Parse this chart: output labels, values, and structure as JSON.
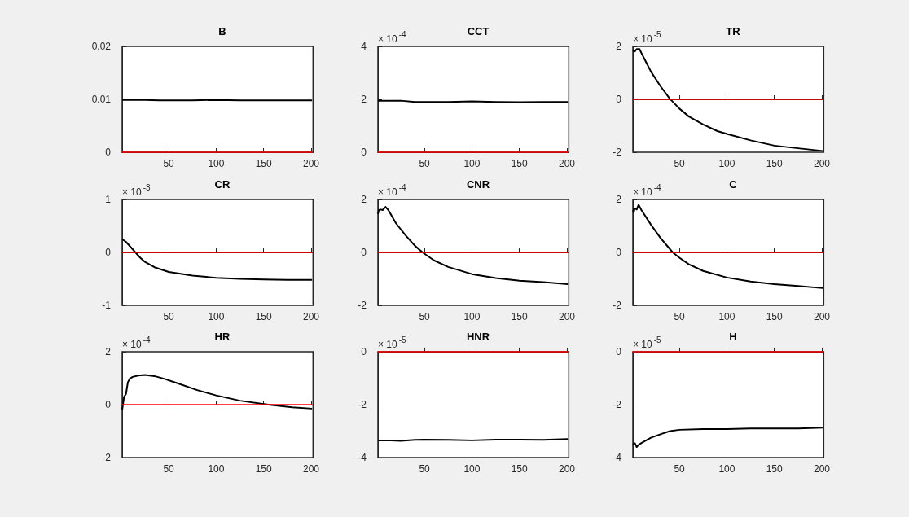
{
  "chart_data": [
    {
      "type": "line",
      "title": "B",
      "x": [
        1,
        10,
        25,
        40,
        50,
        75,
        100,
        125,
        150,
        175,
        201
      ],
      "series": [
        {
          "color": "#000000",
          "values": [
            0.0099,
            0.0099,
            0.0099,
            0.0098,
            0.0098,
            0.0098,
            0.0099,
            0.0098,
            0.0098,
            0.0098,
            0.0098
          ]
        }
      ],
      "xlim": [
        1,
        202
      ],
      "xticks": [
        50,
        100,
        150,
        200
      ],
      "ylim": [
        0,
        0.02
      ],
      "yticks": [
        0,
        0.01,
        0.02
      ],
      "ref_lines": [
        {
          "axis": "y",
          "value": 0,
          "color": "#ff0000"
        }
      ],
      "grid": false
    },
    {
      "type": "line",
      "title": "CCT",
      "annotations": [
        "× 10$^{-4}$"
      ],
      "x": [
        1,
        10,
        25,
        40,
        50,
        75,
        100,
        125,
        150,
        175,
        201
      ],
      "series": [
        {
          "color": "#000000",
          "values": [
            1.95,
            1.95,
            1.95,
            1.9,
            1.9,
            1.9,
            1.92,
            1.9,
            1.89,
            1.9,
            1.9
          ]
        }
      ],
      "xlim": [
        1,
        202
      ],
      "xticks": [
        50,
        100,
        150,
        200
      ],
      "ylim": [
        0,
        4
      ],
      "yticks": [
        0,
        2,
        4
      ],
      "ref_lines": [
        {
          "axis": "y",
          "value": 0,
          "color": "#ff0000"
        }
      ],
      "grid": false
    },
    {
      "type": "line",
      "title": "TR",
      "annotations": [
        "× 10$^{-5}$"
      ],
      "x": [
        1,
        3,
        5,
        8,
        10,
        15,
        20,
        30,
        40,
        50,
        60,
        75,
        90,
        100,
        125,
        150,
        175,
        201
      ],
      "series": [
        {
          "color": "#000000",
          "values": [
            1.85,
            1.8,
            1.9,
            1.9,
            1.75,
            1.4,
            1.05,
            0.5,
            0.02,
            -0.35,
            -0.65,
            -0.95,
            -1.2,
            -1.31,
            -1.55,
            -1.75,
            -1.85,
            -1.95
          ]
        }
      ],
      "xlim": [
        1,
        202
      ],
      "xticks": [
        50,
        100,
        150,
        200
      ],
      "ylim": [
        -2,
        2
      ],
      "yticks": [
        -2,
        0,
        2
      ],
      "ref_lines": [
        {
          "axis": "y",
          "value": 0,
          "color": "#ff0000"
        }
      ],
      "grid": false
    },
    {
      "type": "line",
      "title": "CR",
      "annotations": [
        "× 10$^{-3}$"
      ],
      "x": [
        1,
        5,
        10,
        15,
        20,
        25,
        35,
        50,
        75,
        100,
        125,
        150,
        175,
        201
      ],
      "series": [
        {
          "color": "#000000",
          "values": [
            0.25,
            0.2,
            0.1,
            0,
            -0.1,
            -0.18,
            -0.28,
            -0.37,
            -0.44,
            -0.48,
            -0.5,
            -0.51,
            -0.52,
            -0.52
          ]
        }
      ],
      "xlim": [
        1,
        202
      ],
      "xticks": [
        50,
        100,
        150,
        200
      ],
      "ylim": [
        -1,
        1
      ],
      "yticks": [
        -1,
        0,
        1
      ],
      "ref_lines": [
        {
          "axis": "y",
          "value": 0,
          "color": "#ff0000"
        }
      ],
      "grid": false
    },
    {
      "type": "line",
      "title": "CNR",
      "annotations": [
        "× 10$^{-4}$"
      ],
      "x": [
        1,
        2,
        4,
        6,
        9,
        12,
        20,
        30,
        40,
        48,
        60,
        75,
        100,
        125,
        150,
        175,
        201
      ],
      "series": [
        {
          "color": "#000000",
          "values": [
            1.45,
            1.6,
            1.62,
            1.6,
            1.72,
            1.6,
            1.1,
            0.65,
            0.25,
            0,
            -0.3,
            -0.55,
            -0.82,
            -0.97,
            -1.07,
            -1.12,
            -1.2
          ]
        }
      ],
      "xlim": [
        1,
        202
      ],
      "xticks": [
        50,
        100,
        150,
        200
      ],
      "ylim": [
        -2,
        2
      ],
      "yticks": [
        -2,
        0,
        2
      ],
      "ref_lines": [
        {
          "axis": "y",
          "value": 0,
          "color": "#ff0000"
        }
      ],
      "grid": false
    },
    {
      "type": "line",
      "title": "C",
      "annotations": [
        "× 10$^{-4}$"
      ],
      "x": [
        1,
        2,
        4,
        5,
        7,
        10,
        20,
        30,
        43,
        50,
        60,
        75,
        100,
        125,
        150,
        175,
        201
      ],
      "series": [
        {
          "color": "#000000",
          "values": [
            1.5,
            1.65,
            1.65,
            1.62,
            1.8,
            1.6,
            1.05,
            0.55,
            0,
            -0.2,
            -0.45,
            -0.7,
            -0.95,
            -1.1,
            -1.2,
            -1.27,
            -1.35
          ]
        }
      ],
      "xlim": [
        1,
        202
      ],
      "xticks": [
        50,
        100,
        150,
        200
      ],
      "ylim": [
        -2,
        2
      ],
      "yticks": [
        -2,
        0,
        2
      ],
      "ref_lines": [
        {
          "axis": "y",
          "value": 0,
          "color": "#ff0000"
        }
      ],
      "grid": false
    },
    {
      "type": "line",
      "title": "HR",
      "annotations": [
        "× 10$^{-4}$"
      ],
      "x": [
        1,
        3,
        5,
        7,
        9,
        12,
        18,
        25,
        35,
        45,
        60,
        80,
        100,
        125,
        155,
        180,
        201
      ],
      "series": [
        {
          "color": "#000000",
          "values": [
            -0.2,
            0.3,
            0.4,
            0.85,
            0.98,
            1.05,
            1.1,
            1.12,
            1.08,
            0.98,
            0.8,
            0.55,
            0.35,
            0.15,
            0,
            -0.1,
            -0.15
          ]
        }
      ],
      "xlim": [
        1,
        202
      ],
      "xticks": [
        50,
        100,
        150,
        200
      ],
      "ylim": [
        -2,
        2
      ],
      "yticks": [
        -2,
        0,
        2
      ],
      "ref_lines": [
        {
          "axis": "y",
          "value": 0,
          "color": "#ff0000"
        }
      ],
      "grid": false
    },
    {
      "type": "line",
      "title": "HNR",
      "annotations": [
        "× 10$^{-5}$"
      ],
      "x": [
        1,
        10,
        25,
        40,
        50,
        75,
        100,
        125,
        150,
        175,
        201
      ],
      "series": [
        {
          "color": "#000000",
          "values": [
            -3.35,
            -3.35,
            -3.37,
            -3.33,
            -3.32,
            -3.33,
            -3.35,
            -3.32,
            -3.32,
            -3.33,
            -3.3
          ]
        }
      ],
      "xlim": [
        1,
        202
      ],
      "xticks": [
        50,
        100,
        150,
        200
      ],
      "ylim": [
        -4,
        0
      ],
      "yticks": [
        -4,
        -2,
        0
      ],
      "ref_lines": [
        {
          "axis": "y",
          "value": 0,
          "color": "#ff0000"
        }
      ],
      "grid": false
    },
    {
      "type": "line",
      "title": "H",
      "annotations": [
        "× 10$^{-5}$"
      ],
      "x": [
        1,
        3,
        5,
        7,
        10,
        15,
        20,
        30,
        40,
        50,
        75,
        100,
        125,
        150,
        175,
        201
      ],
      "series": [
        {
          "color": "#000000",
          "values": [
            -3.5,
            -3.45,
            -3.6,
            -3.52,
            -3.45,
            -3.35,
            -3.25,
            -3.12,
            -3.0,
            -2.95,
            -2.92,
            -2.92,
            -2.9,
            -2.9,
            -2.9,
            -2.87
          ]
        }
      ],
      "xlim": [
        1,
        202
      ],
      "xticks": [
        50,
        100,
        150,
        200
      ],
      "ylim": [
        -4,
        0
      ],
      "yticks": [
        -4,
        -2,
        0
      ],
      "ref_lines": [
        {
          "axis": "y",
          "value": 0,
          "color": "#ff0000"
        }
      ],
      "grid": false
    }
  ]
}
